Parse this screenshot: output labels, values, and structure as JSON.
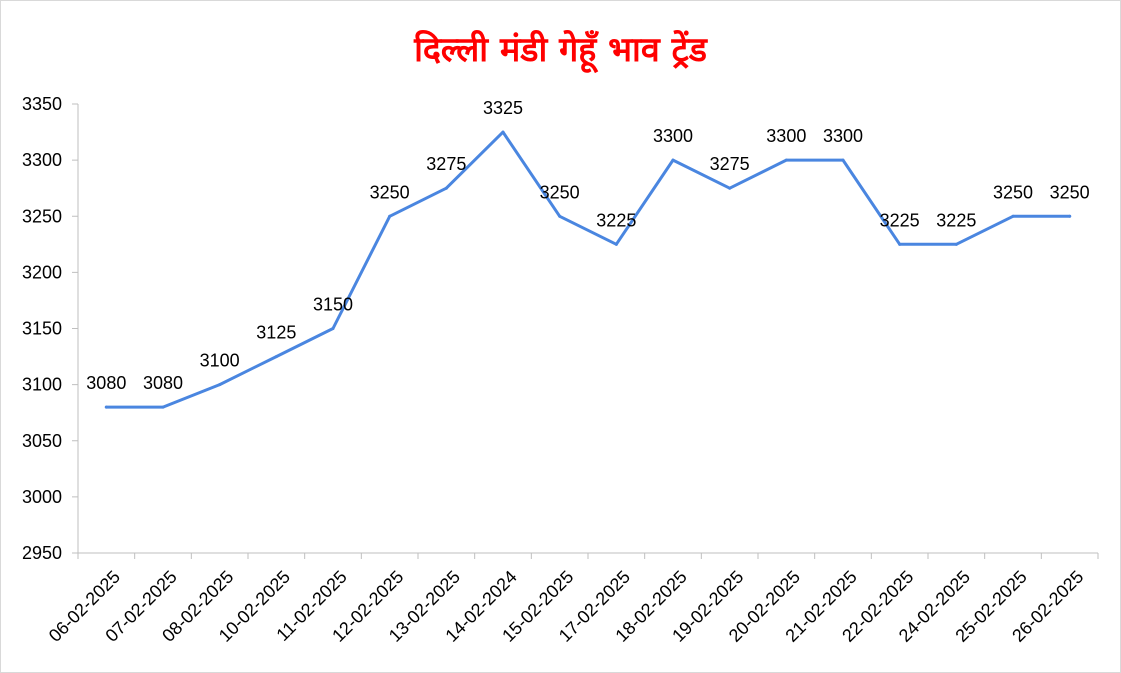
{
  "chart_data": {
    "type": "line",
    "title": "दिल्ली मंडी गेहूँ भाव ट्रेंड",
    "categories": [
      "06-02-2025",
      "07-02-2025",
      "08-02-2025",
      "10-02-2025",
      "11-02-2025",
      "12-02-2025",
      "13-02-2025",
      "14-02-2024",
      "15-02-2025",
      "17-02-2025",
      "18-02-2025",
      "19-02-2025",
      "20-02-2025",
      "21-02-2025",
      "22-02-2025",
      "24-02-2025",
      "25-02-2025",
      "26-02-2025"
    ],
    "series": [
      {
        "values": [
          3080,
          3080,
          3100,
          3125,
          3150,
          3250,
          3275,
          3325,
          3250,
          3225,
          3300,
          3275,
          3300,
          3300,
          3225,
          3225,
          3250,
          3250
        ]
      }
    ],
    "ylim": [
      2950,
      3350
    ],
    "yticks": [
      2950,
      3000,
      3050,
      3100,
      3150,
      3200,
      3250,
      3300,
      3350
    ],
    "xlabel": "",
    "ylabel": "",
    "grid": false,
    "data_labels": true,
    "colors": {
      "line": "#4a86e0",
      "title": "#ff0000",
      "axis": "#bfbfbf"
    }
  }
}
